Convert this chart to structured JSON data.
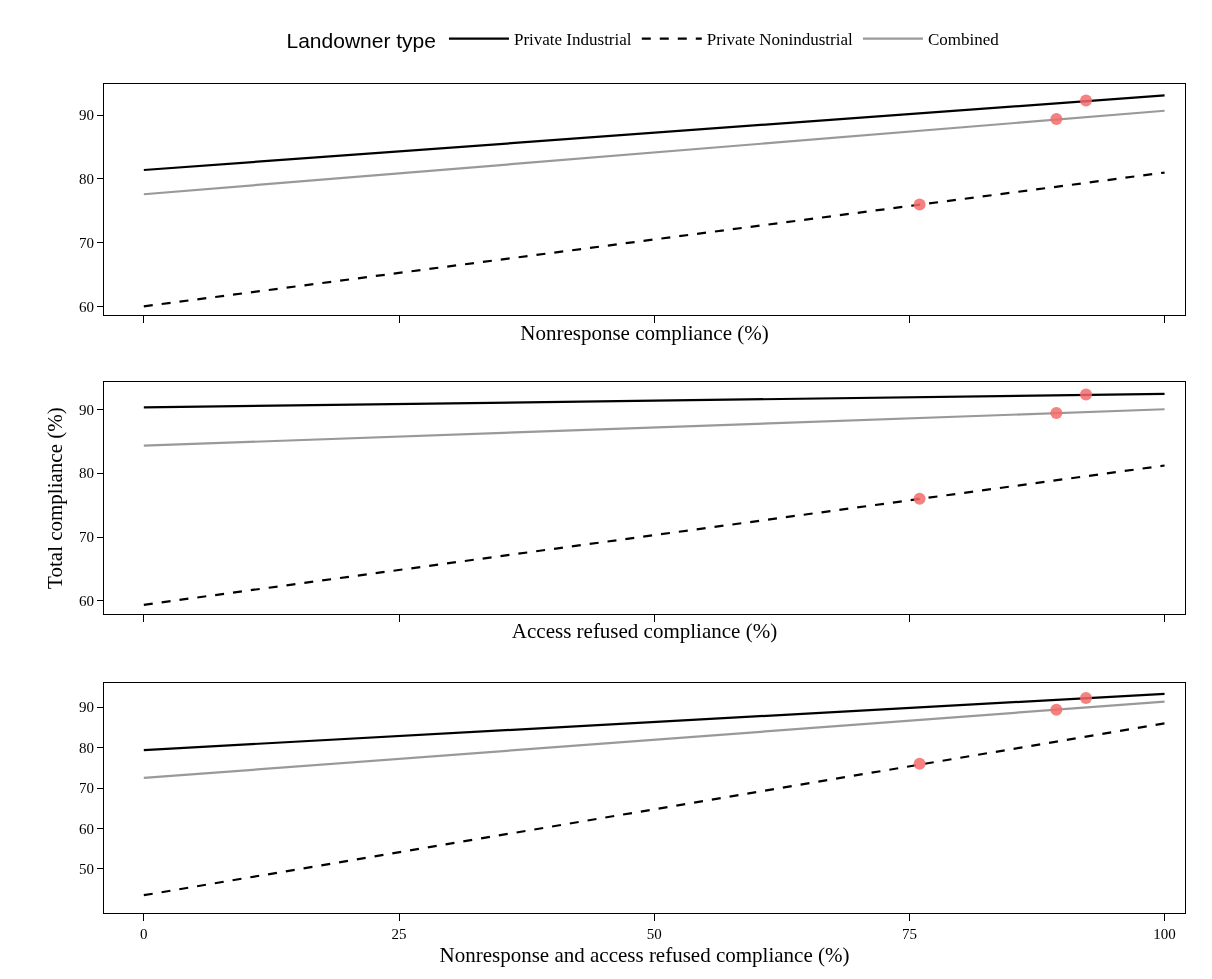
{
  "chart_data": [
    {
      "type": "line",
      "xlabel": "Nonresponse compliance (%)",
      "legend": "top",
      "legend_title": "Landowner type",
      "tick_labels": "y",
      "xlim": [
        -3.9,
        102
      ],
      "xticks": [
        {
          "value": 0,
          "label": null
        },
        {
          "value": 25,
          "label": null
        },
        {
          "value": 50,
          "label": null
        },
        {
          "value": 75,
          "label": null
        },
        {
          "value": 100,
          "label": null
        }
      ],
      "ylim": [
        58.6,
        94.9
      ],
      "yticks": [
        60,
        70,
        80,
        90
      ],
      "series": [
        {
          "name": "Private Industrial",
          "color": "#000000",
          "line_style": "solid",
          "x": [
            0,
            100
          ],
          "values": [
            81.4,
            93.1
          ]
        },
        {
          "name": "Private Nonindustrial",
          "color": "#000000",
          "line_style": "dashed",
          "x": [
            0,
            100
          ],
          "values": [
            60.0,
            81.0
          ]
        },
        {
          "name": "Combined",
          "color": "#999999",
          "line_style": "solid",
          "x": [
            0,
            100
          ],
          "values": [
            77.6,
            90.7
          ]
        },
        {
          "type": "scatter",
          "color": "#f36b6b",
          "marker": "circle",
          "x": [
            76.0,
            89.4,
            92.3
          ],
          "values": [
            76.0,
            89.4,
            92.3
          ]
        }
      ]
    },
    {
      "type": "line",
      "xlabel": "Access refused compliance (%)",
      "ylabel": "Total compliance (%)",
      "tick_labels": "y",
      "xlim": [
        -3.9,
        102
      ],
      "xticks": [
        {
          "value": 0,
          "label": null
        },
        {
          "value": 25,
          "label": null
        },
        {
          "value": 50,
          "label": null
        },
        {
          "value": 75,
          "label": null
        },
        {
          "value": 100,
          "label": null
        }
      ],
      "ylim": [
        58.0,
        94.2
      ],
      "yticks": [
        60,
        70,
        80,
        90
      ],
      "series": [
        {
          "color": "#000000",
          "line_style": "solid",
          "x": [
            0,
            100
          ],
          "values": [
            90.3,
            92.4
          ]
        },
        {
          "color": "#000000",
          "line_style": "dashed",
          "x": [
            0,
            100
          ],
          "values": [
            59.4,
            81.2
          ]
        },
        {
          "color": "#999999",
          "line_style": "solid",
          "x": [
            0,
            100
          ],
          "values": [
            84.3,
            90.0
          ]
        },
        {
          "type": "scatter",
          "color": "#f36b6b",
          "marker": "circle",
          "x": [
            76.0,
            89.4,
            92.3
          ],
          "values": [
            76.0,
            89.4,
            92.3
          ]
        }
      ]
    },
    {
      "type": "line",
      "xlabel": "Nonresponse and access refused compliance (%)",
      "xlim": [
        -3.9,
        102
      ],
      "xticks": [
        0,
        25,
        50,
        75,
        100
      ],
      "ylim": [
        39.1,
        95.9
      ],
      "yticks": [
        50,
        60,
        70,
        80,
        90
      ],
      "series": [
        {
          "color": "#000000",
          "line_style": "solid",
          "x": [
            0,
            100
          ],
          "values": [
            79.4,
            93.3
          ]
        },
        {
          "color": "#000000",
          "line_style": "dashed",
          "x": [
            0,
            100
          ],
          "values": [
            43.5,
            86.0
          ]
        },
        {
          "color": "#999999",
          "line_style": "solid",
          "x": [
            0,
            100
          ],
          "values": [
            72.5,
            91.4
          ]
        },
        {
          "type": "scatter",
          "color": "#f36b6b",
          "marker": "circle",
          "x": [
            76.0,
            89.4,
            92.3
          ],
          "values": [
            76.0,
            89.4,
            92.3
          ]
        }
      ]
    }
  ]
}
